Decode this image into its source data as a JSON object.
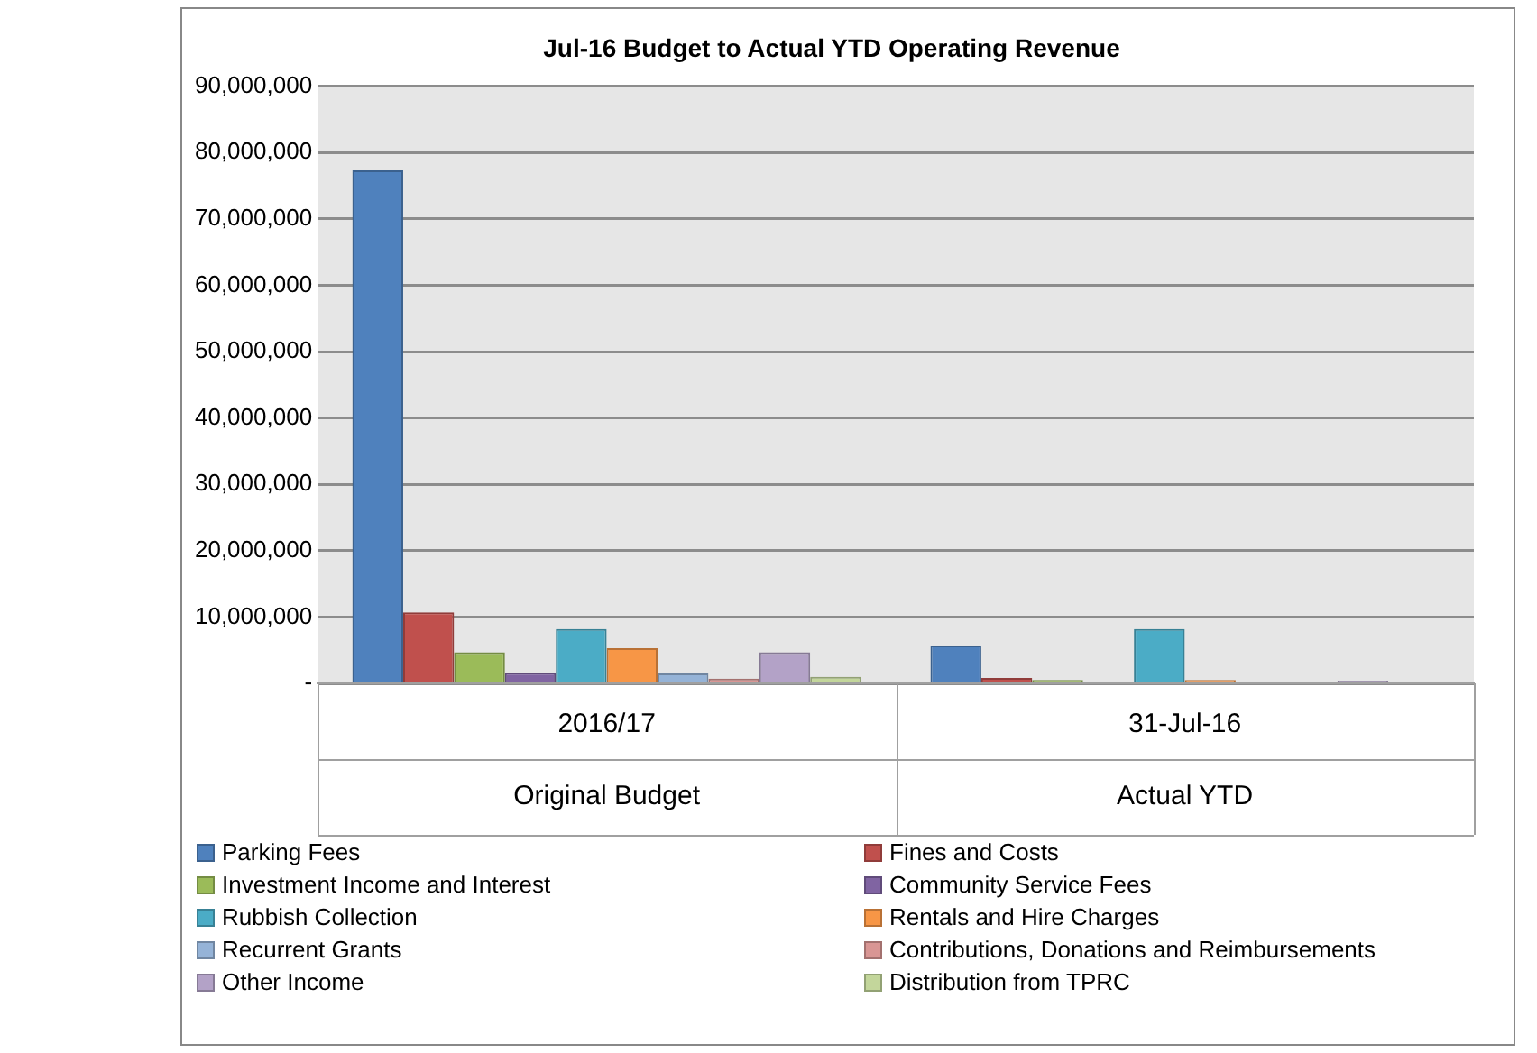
{
  "chart_data": {
    "type": "bar",
    "title": "Jul-16 Budget to Actual YTD Operating Revenue",
    "categories": [
      "2016/17",
      "31-Jul-16"
    ],
    "annotations": [
      "Original Budget",
      "Actual YTD"
    ],
    "series": [
      {
        "name": "Parking Fees",
        "color": "#4f81bd",
        "values": [
          77300000,
          5700000
        ]
      },
      {
        "name": "Fines and Costs",
        "color": "#c0504d",
        "values": [
          10700000,
          800000
        ]
      },
      {
        "name": "Investment Income and Interest",
        "color": "#9bbb59",
        "values": [
          4700000,
          500000
        ]
      },
      {
        "name": "Community Service Fees",
        "color": "#8064a2",
        "values": [
          1600000,
          200000
        ]
      },
      {
        "name": "Rubbish Collection",
        "color": "#4bacc6",
        "values": [
          8200000,
          8200000
        ]
      },
      {
        "name": "Rentals and Hire Charges",
        "color": "#f79646",
        "values": [
          5300000,
          500000
        ]
      },
      {
        "name": "Recurrent Grants",
        "color": "#95b3d7",
        "values": [
          1500000,
          0
        ]
      },
      {
        "name": "Contributions, Donations and Reimbursements",
        "color": "#d99694",
        "values": [
          700000,
          0
        ]
      },
      {
        "name": "Other Income",
        "color": "#b3a2c7",
        "values": [
          4700000,
          400000
        ]
      },
      {
        "name": "Distribution from TPRC",
        "color": "#c3d69b",
        "values": [
          1000000,
          0
        ]
      }
    ],
    "ylim": [
      0,
      90000000
    ],
    "yticks": [
      {
        "value": 0,
        "label": "-"
      },
      {
        "value": 10000000,
        "label": "10,000,000"
      },
      {
        "value": 20000000,
        "label": "20,000,000"
      },
      {
        "value": 30000000,
        "label": "30,000,000"
      },
      {
        "value": 40000000,
        "label": "40,000,000"
      },
      {
        "value": 50000000,
        "label": "50,000,000"
      },
      {
        "value": 60000000,
        "label": "60,000,000"
      },
      {
        "value": 70000000,
        "label": "70,000,000"
      },
      {
        "value": 80000000,
        "label": "80,000,000"
      },
      {
        "value": 90000000,
        "label": "90,000,000"
      }
    ],
    "grid": "y",
    "legend": "bottom"
  }
}
